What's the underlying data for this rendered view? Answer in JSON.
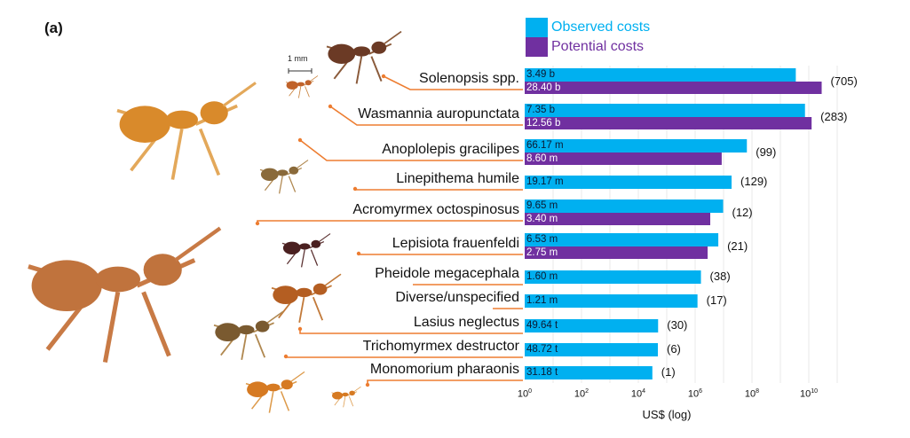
{
  "panel_label": "(a)",
  "scale_bar_label": "1 mm",
  "colors": {
    "observed": "#00b0f0",
    "potential": "#7030a0",
    "arrow": "#ed7d31",
    "grid": "#e8e8e8"
  },
  "chart_data": {
    "type": "bar",
    "orientation": "horizontal",
    "xscale": "log10",
    "xlabel": "US$ (log)",
    "xlim_log10": [
      0,
      11
    ],
    "xticks": [
      {
        "base": "10",
        "exp": "0"
      },
      {
        "base": "10",
        "exp": "2"
      },
      {
        "base": "10",
        "exp": "4"
      },
      {
        "base": "10",
        "exp": "6"
      },
      {
        "base": "10",
        "exp": "8"
      },
      {
        "base": "10",
        "exp": "10"
      }
    ],
    "legend": {
      "position": "top-right",
      "entries": [
        "Observed costs",
        "Potential costs"
      ]
    },
    "categories": [
      {
        "species": "Solenopsis spp.",
        "count": "(705)",
        "observed": 3490000000,
        "observed_label": "3.49 b",
        "potential": 28400000000,
        "potential_label": "28.40 b"
      },
      {
        "species": "Wasmannia auropunctata",
        "count": "(283)",
        "observed": 7350000000,
        "observed_label": "7.35 b",
        "potential": 12560000000,
        "potential_label": "12.56 b"
      },
      {
        "species": "Anoplolepis gracilipes",
        "count": "(99)",
        "observed": 66170000,
        "observed_label": "66.17 m",
        "potential": 8600000,
        "potential_label": "8.60 m"
      },
      {
        "species": "Linepithema humile",
        "count": "(129)",
        "observed": 19170000,
        "observed_label": "19.17 m",
        "potential": null,
        "potential_label": null
      },
      {
        "species": "Acromyrmex octospinosus",
        "count": "(12)",
        "observed": 9650000,
        "observed_label": "9.65 m",
        "potential": 3400000,
        "potential_label": "3.40 m"
      },
      {
        "species": "Lepisiota frauenfeldi",
        "count": "(21)",
        "observed": 6530000,
        "observed_label": "6.53 m",
        "potential": 2750000,
        "potential_label": "2.75 m"
      },
      {
        "species": "Pheidole megacephala",
        "count": "(38)",
        "observed": 1600000,
        "observed_label": "1.60 m",
        "potential": null,
        "potential_label": null
      },
      {
        "species": "Diverse/unspecified",
        "count": "(17)",
        "observed": 1210000,
        "observed_label": "1.21 m",
        "potential": null,
        "potential_label": null
      },
      {
        "species": "Lasius neglectus",
        "count": "(30)",
        "observed": 49640,
        "observed_label": "49.64 t",
        "potential": null,
        "potential_label": null
      },
      {
        "species": "Trichomyrmex destructor",
        "count": "(6)",
        "observed": 48720,
        "observed_label": "48.72 t",
        "potential": null,
        "potential_label": null
      },
      {
        "species": "Monomorium pharaonis",
        "count": "(1)",
        "observed": 31180,
        "observed_label": "31.18 t",
        "potential": null,
        "potential_label": null
      }
    ]
  }
}
